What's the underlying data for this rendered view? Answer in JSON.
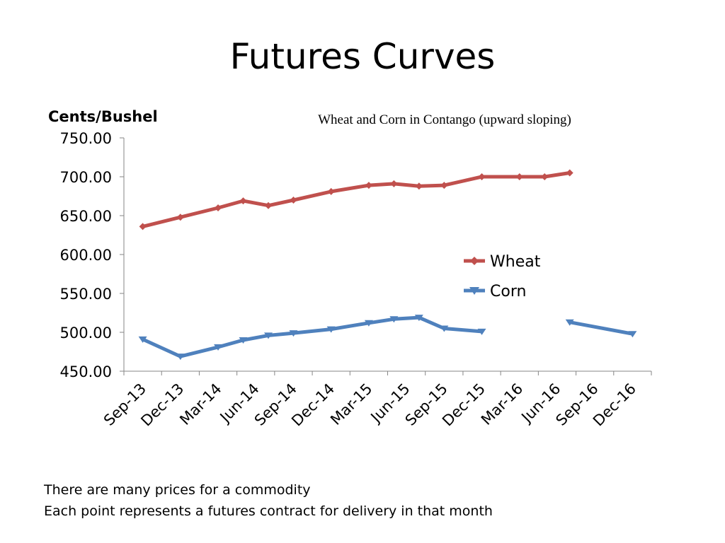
{
  "slide": {
    "title": "Futures Curves",
    "notes": [
      "There are many prices for a commodity",
      "Each point represents a futures contract for delivery in that month"
    ]
  },
  "chart_data": {
    "type": "line",
    "title": "",
    "subtitle": "Wheat and Corn in Contango (upward sloping)",
    "ylabel": "Cents/Bushel",
    "xlabel": "",
    "ylim": [
      450,
      750
    ],
    "yticks": [
      "450.00",
      "500.00",
      "550.00",
      "600.00",
      "650.00",
      "700.00",
      "750.00"
    ],
    "categories": [
      "Sep-13",
      "Dec-13",
      "Mar-14",
      "Jun-14",
      "Sep-14",
      "Dec-14",
      "Mar-15",
      "Jun-15",
      "Sep-15",
      "Dec-15",
      "Mar-16",
      "Jun-16",
      "Sep-16",
      "Dec-16"
    ],
    "grid": false,
    "legend": "center-right",
    "series": [
      {
        "name": "Wheat",
        "color": "#C0504D",
        "marker": "diamond",
        "points": [
          [
            "Sep-13",
            636
          ],
          [
            "Dec-13",
            648
          ],
          [
            "Mar-14",
            660
          ],
          [
            "May-14",
            669
          ],
          [
            "Jul-14",
            663
          ],
          [
            "Sep-14",
            670
          ],
          [
            "Dec-14",
            681
          ],
          [
            "Mar-15",
            689
          ],
          [
            "May-15",
            691
          ],
          [
            "Jul-15",
            688
          ],
          [
            "Sep-15",
            689
          ],
          [
            "Dec-15",
            700
          ],
          [
            "Mar-16",
            700
          ],
          [
            "May-16",
            700
          ],
          [
            "Jul-16",
            705
          ]
        ]
      },
      {
        "name": "Corn",
        "color": "#4F81BD",
        "marker": "triangle-down",
        "points": [
          [
            "Sep-13",
            491
          ],
          [
            "Dec-13",
            469
          ],
          [
            "Mar-14",
            481
          ],
          [
            "May-14",
            490
          ],
          [
            "Jul-14",
            496
          ],
          [
            "Sep-14",
            499
          ],
          [
            "Dec-14",
            504
          ],
          [
            "Mar-15",
            512
          ],
          [
            "May-15",
            517
          ],
          [
            "Jul-15",
            519
          ],
          [
            "Sep-15",
            505
          ],
          [
            "Dec-15",
            501
          ],
          null,
          null,
          [
            "Jul-16",
            513
          ],
          [
            "Dec-16",
            498
          ]
        ]
      }
    ]
  }
}
